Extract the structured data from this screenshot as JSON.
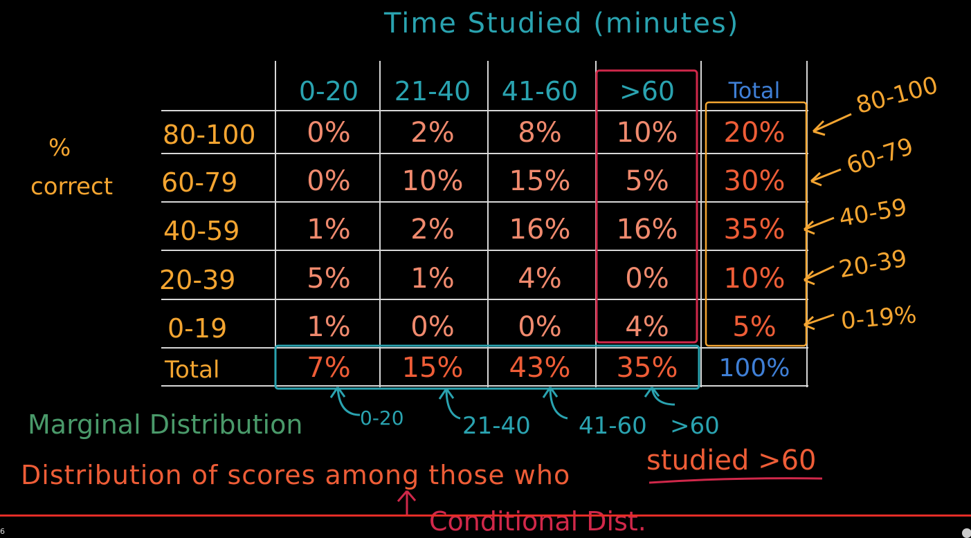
{
  "title": "Time Studied (minutes)",
  "column_headers": [
    "0-20",
    "21-40",
    "41-60",
    ">60",
    "Total"
  ],
  "row_axis_label": [
    "%",
    "correct"
  ],
  "rows": [
    {
      "label": "80-100",
      "cells": [
        "0%",
        "2%",
        "8%",
        "10%"
      ],
      "total": "20%"
    },
    {
      "label": "60-79",
      "cells": [
        "0%",
        "10%",
        "15%",
        "5%"
      ],
      "total": "30%"
    },
    {
      "label": "40-59",
      "cells": [
        "1%",
        "2%",
        "16%",
        "16%"
      ],
      "total": "35%"
    },
    {
      "label": "20-39",
      "cells": [
        "5%",
        "1%",
        "4%",
        "0%"
      ],
      "total": "10%"
    },
    {
      "label": "0-19",
      "cells": [
        "1%",
        "0%",
        "0%",
        "4%"
      ],
      "total": "5%"
    }
  ],
  "total_row": {
    "label": "Total",
    "cells": [
      "7%",
      "15%",
      "43%",
      "35%"
    ],
    "total": "100%"
  },
  "right_arrow_labels": [
    "80-100",
    "60-79",
    "40-59",
    "20-39",
    "0-19%"
  ],
  "bottom_arrow_labels": [
    "0-20",
    "21-40",
    "41-60",
    ">60"
  ],
  "notes": {
    "marginal": "Marginal Distribution",
    "sentence_start": "Distribution of scores among those who",
    "sentence_end": "studied >60",
    "conditional": "Conditional Dist."
  },
  "video": {
    "timestamp": "6",
    "progress": 1.0
  },
  "colors": {
    "background": "#000000",
    "teal": "#2aa3b0",
    "orange": "#f4a531",
    "salmon": "#f08a6e",
    "red": "#ee5d37",
    "blue": "#3f7fd6",
    "green": "#4a9a6a",
    "crimson": "#d0284a",
    "progress": "#e52d27"
  }
}
